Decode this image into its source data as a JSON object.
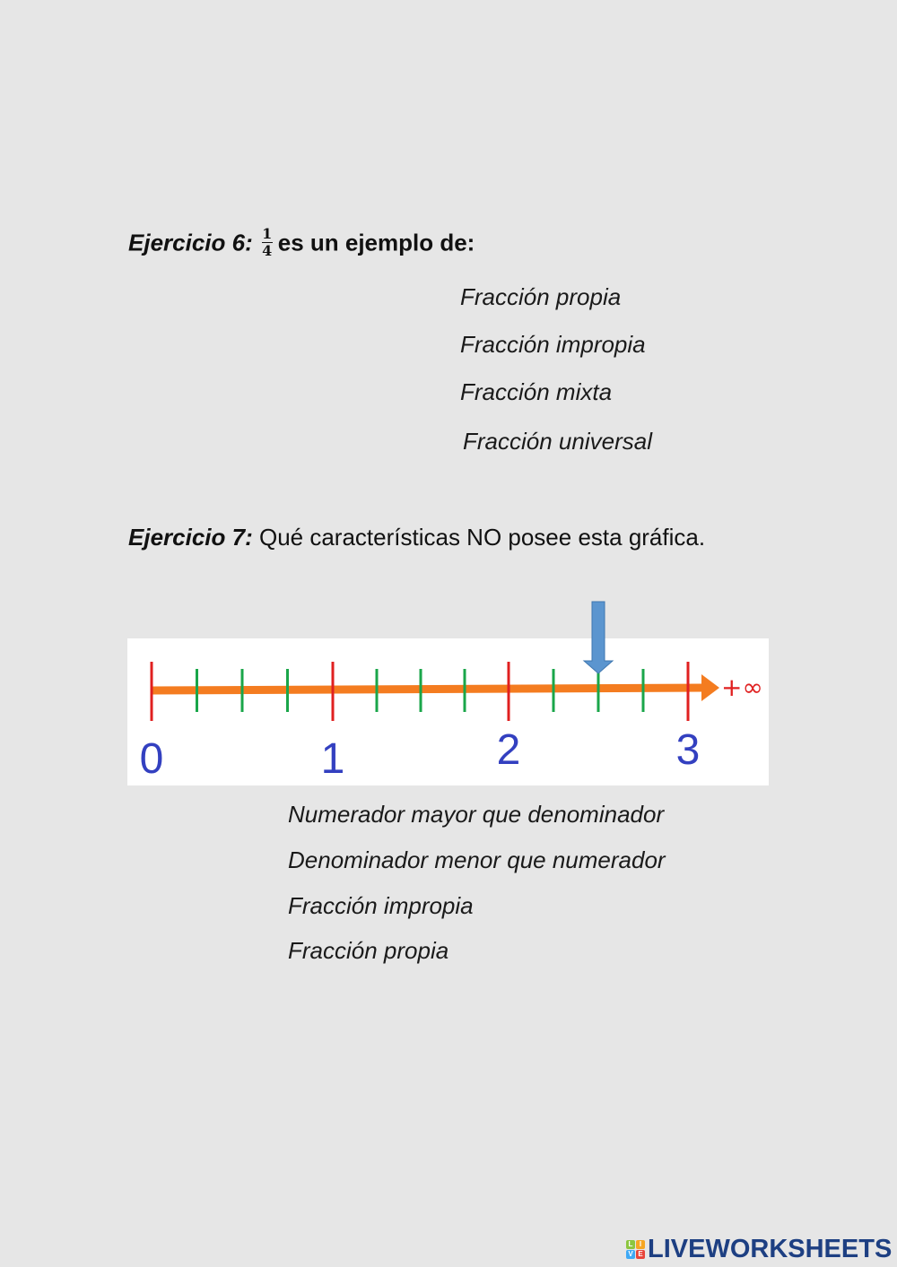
{
  "exercise6": {
    "label": "Ejercicio 6:",
    "fraction": {
      "numerator": "1",
      "denominator": "4"
    },
    "question": "es un ejemplo de:",
    "options": [
      "Fracción propia",
      "Fracción impropia",
      "Fracción mixta",
      "Fracción universal"
    ]
  },
  "exercise7": {
    "label": "Ejercicio 7:",
    "question": "Qué características NO posee esta gráfica.",
    "number_line": {
      "labels": [
        "0",
        "1",
        "2",
        "3"
      ],
      "infinity_label": "+∞",
      "subdivisions_per_unit": 4,
      "arrow_points_to": 2.5,
      "colors": {
        "line": "#f47c20",
        "major_tick": "#e02020",
        "minor_tick": "#1aa64a",
        "labels": "#3340c0",
        "arrow": "#5b95cf"
      }
    },
    "options": [
      "Numerador mayor que denominador",
      "Denominador menor que numerador",
      "Fracción impropia",
      "Fracción propia"
    ]
  },
  "footer": {
    "logo_text": "LIVEWORKSHEETS",
    "logo_tiles": [
      "L",
      "I",
      "V",
      "E"
    ]
  }
}
